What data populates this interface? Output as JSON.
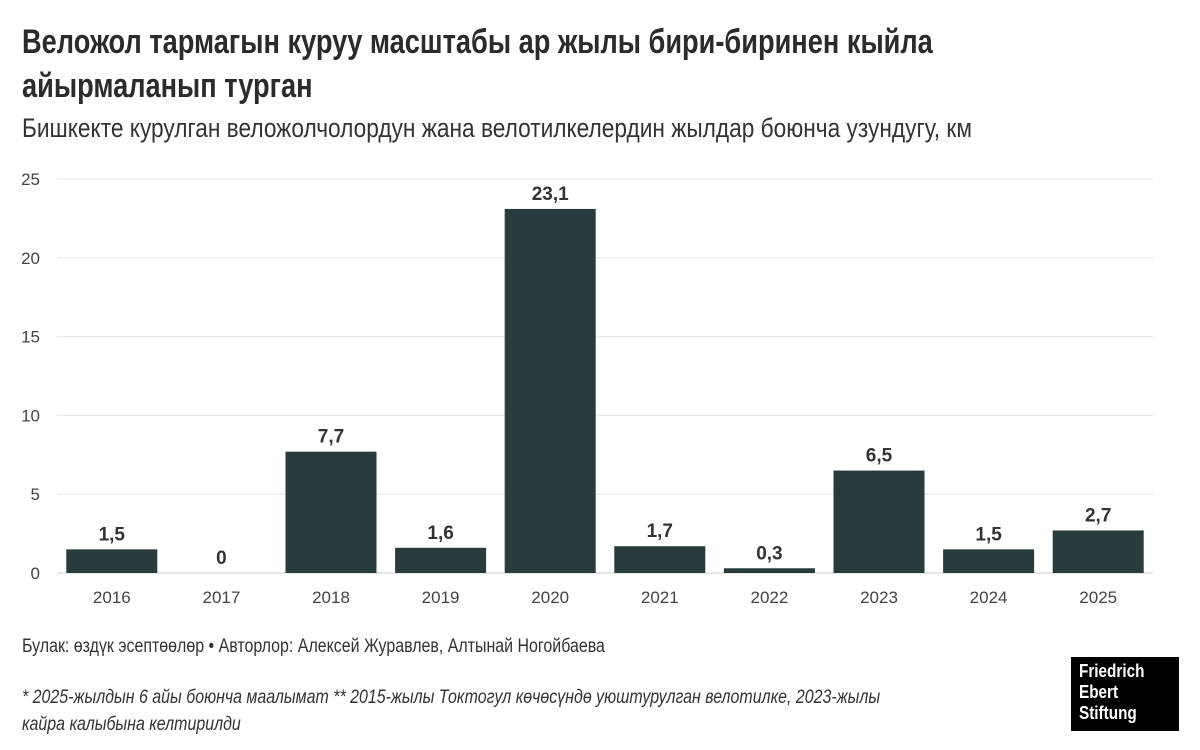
{
  "title_lines": [
    "Веложол тармагын куруу масштабы ар жылы бири-биринен кыйла",
    "айырмаланып турган"
  ],
  "subtitle": "Бишкекте курулган веложолчолордун жана велотилкелердин жылдар боюнча узундугу, км",
  "source": "Булак: өздүк эсептөөлөр • Авторлор: Алексей Журавлев, Алтынай Ногойбаева",
  "note_lines": [
    "* 2025-жылдын 6 айы боюнча маалымат ** 2015-жылы Токтогул көчөсүндө уюштурулган велотилке, 2023-жылы",
    "кайра калыбына келтирилди"
  ],
  "logo_text": [
    "Friedrich",
    "Ebert",
    "Stiftung"
  ],
  "colors": {
    "bar": "#283b3d",
    "grid": "#e6e6e6",
    "text": "#333333"
  },
  "chart_data": {
    "type": "bar",
    "categories": [
      "2016",
      "2017",
      "2018",
      "2019",
      "2020",
      "2021",
      "2022",
      "2023",
      "2024",
      "2025"
    ],
    "values": [
      1.5,
      0,
      7.7,
      1.6,
      23.1,
      1.7,
      0.3,
      6.5,
      1.5,
      2.7
    ],
    "labels": [
      "1,5",
      "0",
      "7,7",
      "1,6",
      "23,1",
      "1,7",
      "0,3",
      "6,5",
      "1,5",
      "2,7"
    ],
    "ylim": [
      0,
      25
    ],
    "yticks": [
      0,
      5,
      10,
      15,
      20,
      25
    ],
    "xlabel": "",
    "ylabel": "km",
    "grid": true
  }
}
